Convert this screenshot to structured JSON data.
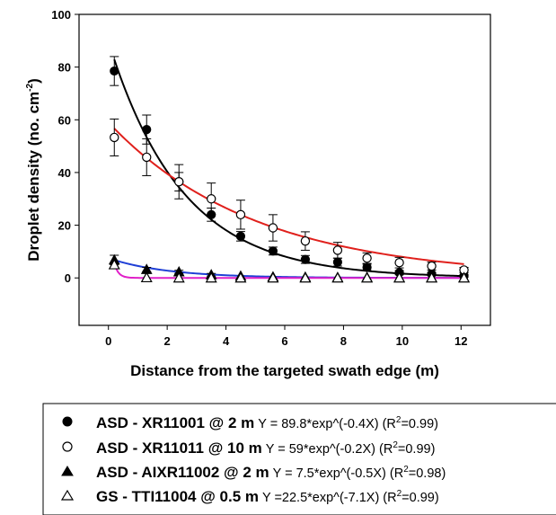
{
  "chart_data": {
    "type": "scatter",
    "xlabel": "Distance from the targeted swath edge (m)",
    "ylabel": "Droplet density (no. cm",
    "ylabel_unit_exponent": "-2",
    "ylabel_close": ")",
    "xlim": [
      -1,
      13
    ],
    "ylim": [
      -18,
      100
    ],
    "x_ticks": [
      0,
      2,
      4,
      6,
      8,
      10,
      12
    ],
    "y_ticks": [
      0,
      20,
      40,
      60,
      80,
      100
    ],
    "x": [
      0.2,
      1.3,
      2.4,
      3.5,
      4.5,
      5.6,
      6.7,
      7.8,
      8.8,
      9.9,
      11.0,
      12.1
    ],
    "grid": false,
    "legend_position": "below",
    "series": [
      {
        "name": "ASD - XR11001 @ 2 m",
        "marker": "filled-circle",
        "color": "#000000",
        "fit_color": "#000000",
        "fit": {
          "a": 89.8,
          "b": -0.4
        },
        "values": [
          78.5,
          56.3,
          36.5,
          24.0,
          15.8,
          10.2,
          7.0,
          6.0,
          4.0,
          2.0,
          1.5,
          0.8
        ],
        "error": [
          5.5,
          5.5,
          3.5,
          2.5,
          1.8,
          1.5,
          1.5,
          1.5,
          1.2,
          0.8,
          0.6,
          0.5
        ],
        "equation_prefix": "Y = 89.8*exp^(-0.4X) (R",
        "r2_exponent": "2",
        "r2_value": "=0.99)"
      },
      {
        "name": "ASD - XR11011 @ 10 m",
        "marker": "open-circle",
        "color": "#000000",
        "fit_color": "#e0201c",
        "fit": {
          "a": 59,
          "b": -0.2
        },
        "values": [
          53.3,
          45.8,
          36.5,
          30.0,
          24.0,
          19.0,
          14.0,
          10.5,
          7.5,
          5.8,
          4.5,
          3.0
        ],
        "error": [
          7.0,
          7.0,
          6.5,
          6.0,
          5.5,
          5.0,
          3.5,
          3.0,
          2.0,
          2.0,
          1.5,
          1.0
        ],
        "equation_prefix": "Y = 59*exp^(-0.2X) (R",
        "r2_exponent": "2",
        "r2_value": "=0.99)"
      },
      {
        "name": "ASD - AIXR11002 @ 2 m",
        "marker": "filled-triangle",
        "color": "#000000",
        "fit_color": "#1f3fd6",
        "fit": {
          "a": 7.5,
          "b": -0.5
        },
        "values": [
          6.8,
          3.2,
          2.3,
          1.2,
          0.7,
          0.4,
          0.3,
          0.2,
          0.2,
          0.1,
          0.1,
          0.1
        ],
        "error": [
          1.8,
          0.8,
          0.6,
          0.5,
          0.3,
          0.2,
          0.2,
          0.2,
          0.1,
          0.1,
          0.1,
          0.1
        ],
        "equation_prefix": "Y = 7.5*exp^(-0.5X) (R",
        "r2_exponent": "2",
        "r2_value": "=0.98)"
      },
      {
        "name": "GS - TTI11004 @ 0.5 m",
        "marker": "open-triangle",
        "color": "#000000",
        "fit_color": "#e020c8",
        "fit": {
          "a": 22.5,
          "b": -7.1
        },
        "values": [
          5.0,
          0.1,
          0.0,
          0.0,
          0.0,
          0.0,
          0.0,
          0.0,
          0.0,
          0.0,
          0.0,
          0.0
        ],
        "error": [
          0,
          0,
          0,
          0,
          0,
          0,
          0,
          0,
          0,
          0,
          0,
          0
        ],
        "equation_prefix": "Y =22.5*exp^(-7.1X) (R",
        "r2_exponent": "2",
        "r2_value": "=0.99)"
      }
    ]
  }
}
